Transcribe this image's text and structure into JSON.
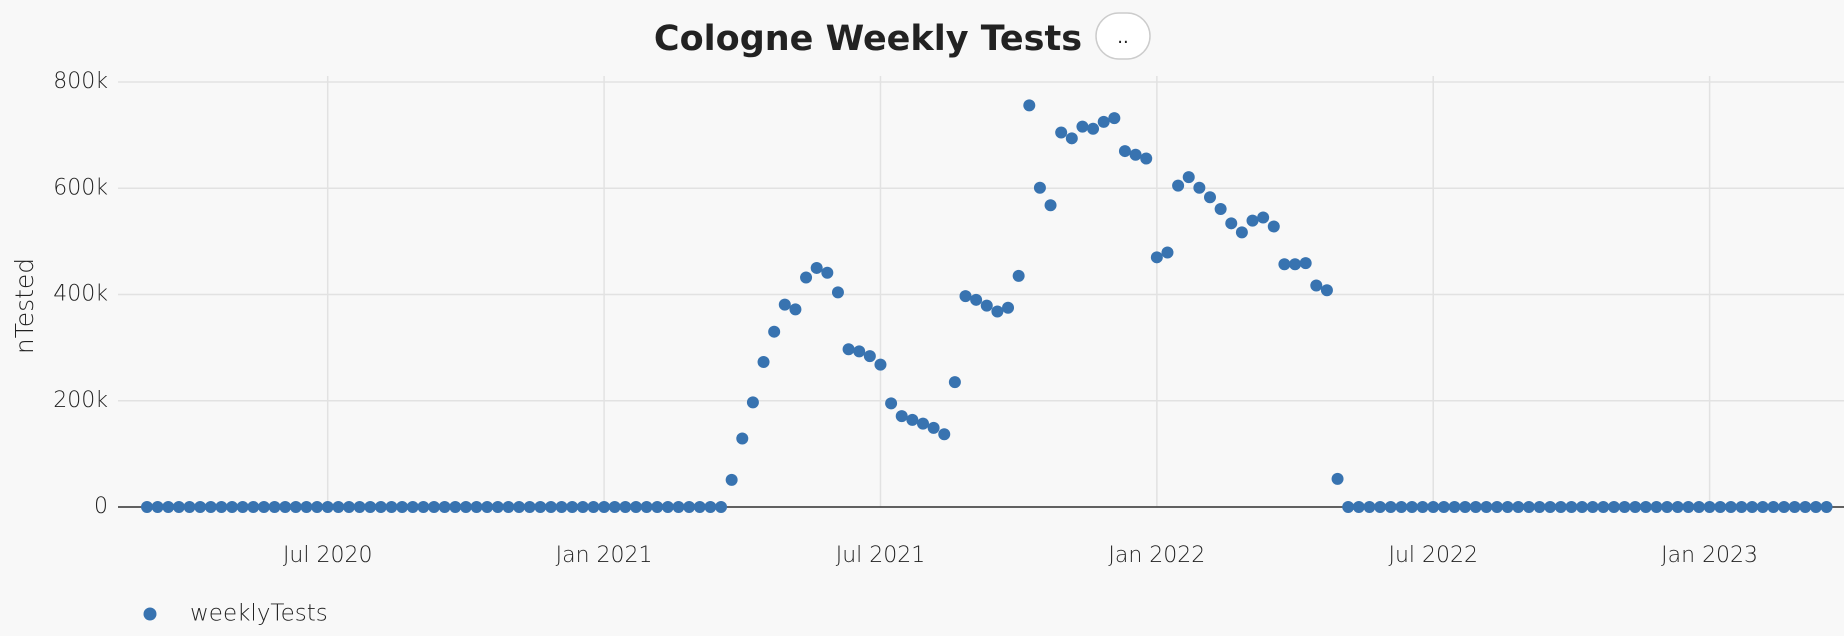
{
  "chart_data": {
    "type": "scatter",
    "title": "Cologne Weekly Tests",
    "button": "..",
    "y_label": "nTested",
    "categories": [
      null,
      null,
      null,
      null,
      null,
      null,
      null,
      null,
      null,
      null,
      null,
      null,
      null,
      null,
      null,
      null,
      null,
      "Jul 2020",
      null,
      null,
      null,
      null,
      null,
      null,
      null,
      null,
      null,
      null,
      null,
      null,
      null,
      null,
      null,
      null,
      null,
      null,
      null,
      null,
      null,
      null,
      null,
      null,
      null,
      "Jan 2021",
      null,
      null,
      null,
      null,
      null,
      null,
      null,
      null,
      null,
      null,
      null,
      null,
      null,
      null,
      null,
      null,
      null,
      null,
      null,
      null,
      null,
      null,
      null,
      null,
      null,
      "Jul 2021",
      null,
      null,
      null,
      null,
      null,
      null,
      null,
      null,
      null,
      null,
      null,
      null,
      null,
      null,
      null,
      null,
      null,
      null,
      null,
      null,
      null,
      null,
      null,
      null,
      null,
      "Jan 2022",
      null,
      null,
      null,
      null,
      null,
      null,
      null,
      null,
      null,
      null,
      null,
      null,
      null,
      null,
      null,
      null,
      null,
      null,
      null,
      null,
      null,
      null,
      null,
      null,
      null,
      "Jul 2022",
      null,
      null,
      null,
      null,
      null,
      null,
      null,
      null,
      null,
      null,
      null,
      null,
      null,
      null,
      null,
      null,
      null,
      null,
      null,
      null,
      null,
      null,
      null,
      null,
      null,
      "Jan 2023",
      null,
      null,
      null,
      null,
      null,
      null,
      null,
      null,
      null,
      null,
      null
    ],
    "series": [
      {
        "name": "weeklyTests",
        "color": "#3873b0",
        "values": [
          0,
          0,
          0,
          0,
          0,
          0,
          0,
          0,
          0,
          0,
          0,
          0,
          0,
          0,
          0,
          0,
          0,
          0,
          0,
          0,
          0,
          0,
          0,
          0,
          0,
          0,
          0,
          0,
          0,
          0,
          0,
          0,
          0,
          0,
          0,
          0,
          0,
          0,
          0,
          0,
          0,
          0,
          0,
          0,
          0,
          0,
          0,
          0,
          0,
          0,
          0,
          0,
          0,
          0,
          0,
          51000,
          129000,
          197000,
          273000,
          330000,
          381000,
          372000,
          432000,
          450000,
          441000,
          404000,
          297000,
          293000,
          284000,
          268000,
          195000,
          171000,
          164000,
          157000,
          149000,
          137000,
          235000,
          397000,
          390000,
          379000,
          368000,
          375000,
          435000,
          756000,
          601000,
          568000,
          705000,
          694000,
          716000,
          712000,
          725000,
          732000,
          670000,
          663000,
          656000,
          470000,
          479000,
          605000,
          621000,
          601000,
          583000,
          561000,
          534000,
          517000,
          539000,
          545000,
          528000,
          457000,
          457000,
          459000,
          417000,
          408000,
          53000,
          0,
          0,
          0,
          0,
          0,
          0,
          0,
          0,
          0,
          0,
          0,
          0,
          0,
          0,
          0,
          0,
          0,
          0,
          0,
          0,
          0,
          0,
          0,
          0,
          0,
          0,
          0,
          0,
          0,
          0,
          0,
          0,
          0,
          0,
          0,
          0,
          0,
          0,
          0,
          0,
          0,
          0,
          0,
          0,
          0,
          0
        ]
      }
    ],
    "ylim": [
      0,
      800000
    ],
    "yticks": [
      0,
      {
        "value": 200000,
        "label": "200k"
      },
      {
        "value": 400000,
        "label": "400k"
      },
      {
        "value": 600000,
        "label": "600k"
      },
      {
        "value": 800000,
        "label": "800k"
      }
    ],
    "grid": true,
    "legend": "bottom-left"
  }
}
